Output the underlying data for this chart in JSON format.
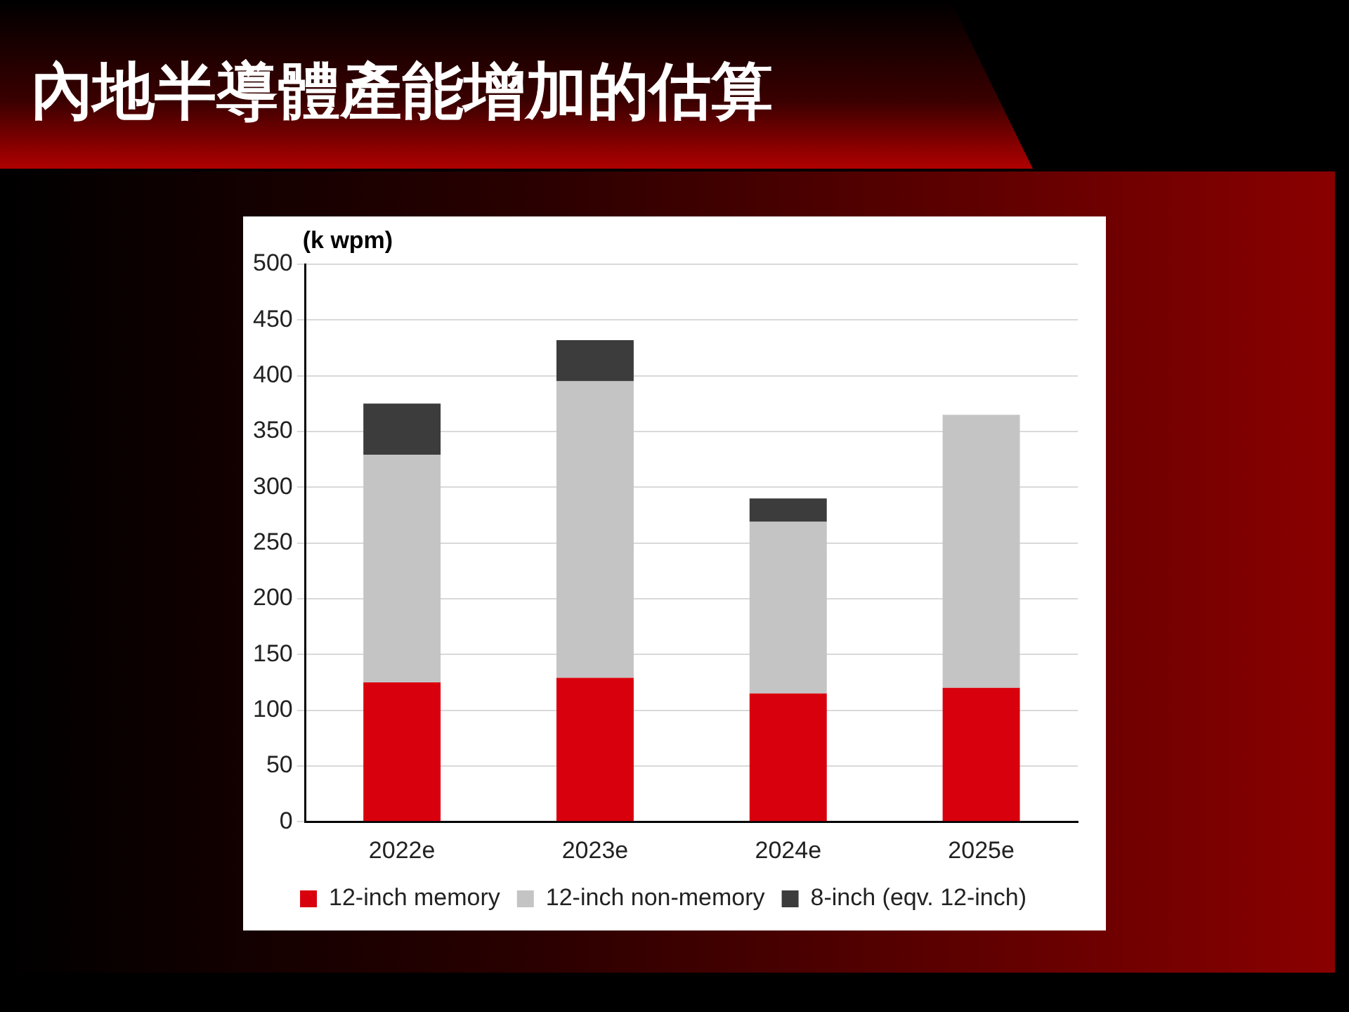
{
  "chart_data": {
    "type": "bar",
    "title": "內地半導體產能增加的估算",
    "ylabel": "(k wpm)",
    "categories": [
      "2022e",
      "2023e",
      "2024e",
      "2025e"
    ],
    "stacked": true,
    "series": [
      {
        "name": "12-inch memory",
        "color": "#d9000d",
        "values": [
          125,
          129,
          115,
          120
        ]
      },
      {
        "name": "12-inch non-memory",
        "color": "#c4c4c4",
        "values": [
          204,
          266,
          154,
          245
        ]
      },
      {
        "name": "8-inch (eqv. 12-inch)",
        "color": "#3c3c3c",
        "values": [
          46,
          37,
          21,
          0
        ]
      }
    ],
    "ylim": [
      0,
      500
    ],
    "yticks": [
      0,
      50,
      100,
      150,
      200,
      250,
      300,
      350,
      400,
      450,
      500
    ],
    "grid": "y",
    "legend": "bottom"
  }
}
